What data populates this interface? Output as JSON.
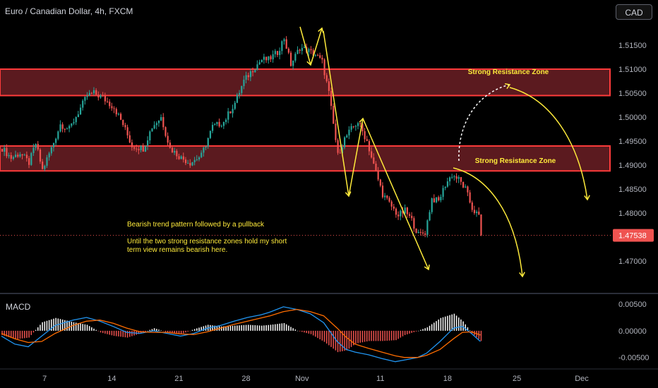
{
  "header": {
    "title": "Euro / Canadian Dollar, 4h, FXCM",
    "currency_button": "CAD"
  },
  "indicator": {
    "label": "MACD"
  },
  "colors": {
    "up": "#26a69a",
    "down": "#ef5350",
    "zone_fill": "#5b1a1f",
    "zone_border": "#ff3b3b",
    "annotation": "#ffeb3b",
    "macd_line": "#2196f3",
    "signal_line": "#ff6d00",
    "hist_pos": "#ffffff",
    "hist_neg": "#ef5350",
    "axis_text": "#b2b5be"
  },
  "chart_data": [
    {
      "type": "candlestick",
      "title": "Euro / Canadian Dollar, 4h, FXCM",
      "y_axis_labels": [
        "1.51500",
        "1.51000",
        "1.50500",
        "1.50000",
        "1.49500",
        "1.49000",
        "1.48500",
        "1.48000",
        "1.47000"
      ],
      "x_tick_labels": [
        "7",
        "14",
        "21",
        "28",
        "Nov",
        "11",
        "18",
        "25",
        "Dec"
      ],
      "ylim": [
        1.4665,
        1.52
      ],
      "last_price": "1.47538",
      "series": [
        {
          "close_path": [
            [
              0,
              1.4935
            ],
            [
              4,
              1.4915
            ],
            [
              8,
              1.4925
            ],
            [
              12,
              1.4905
            ],
            [
              15,
              1.4945
            ],
            [
              18,
              1.489
            ],
            [
              22,
              1.4935
            ],
            [
              26,
              1.4985
            ],
            [
              30,
              1.4975
            ],
            [
              34,
              1.501
            ],
            [
              38,
              1.5045
            ],
            [
              41,
              1.505
            ],
            [
              45,
              1.504
            ],
            [
              50,
              1.502
            ],
            [
              54,
              1.4985
            ],
            [
              58,
              1.494
            ],
            [
              63,
              1.4935
            ],
            [
              67,
              1.498
            ],
            [
              71,
              1.5
            ],
            [
              75,
              1.4935
            ],
            [
              80,
              1.4915
            ],
            [
              84,
              1.4905
            ],
            [
              89,
              1.492
            ],
            [
              94,
              1.498
            ],
            [
              99,
              1.499
            ],
            [
              104,
              1.503
            ],
            [
              108,
              1.5075
            ],
            [
              112,
              1.51
            ],
            [
              116,
              1.512
            ],
            [
              119,
              1.512
            ],
            [
              123,
              1.5135
            ],
            [
              126,
              1.5165
            ],
            [
              129,
              1.511
            ],
            [
              133,
              1.5145
            ],
            [
              136,
              1.514
            ],
            [
              140,
              1.513
            ],
            [
              143,
              1.5115
            ],
            [
              146,
              1.505
            ],
            [
              150,
              1.492
            ],
            [
              153,
              1.4955
            ],
            [
              156,
              1.4975
            ],
            [
              159,
              1.499
            ],
            [
              163,
              1.495
            ],
            [
              166,
              1.49
            ],
            [
              170,
              1.484
            ],
            [
              173,
              1.482
            ],
            [
              177,
              1.4795
            ],
            [
              180,
              1.4805
            ],
            [
              183,
              1.4785
            ],
            [
              186,
              1.4755
            ],
            [
              189,
              1.476
            ],
            [
              192,
              1.483
            ],
            [
              195,
              1.4825
            ],
            [
              198,
              1.486
            ],
            [
              201,
              1.488
            ],
            [
              204,
              1.487
            ],
            [
              207,
              1.485
            ],
            [
              210,
              1.481
            ],
            [
              213,
              1.4793
            ],
            [
              214,
              1.47538
            ]
          ]
        }
      ],
      "zones": [
        {
          "label": "Strong Resistance Zone",
          "from": 1.5045,
          "to": 1.51
        },
        {
          "label": "Strong Resistance Zone",
          "from": 1.4888,
          "to": 1.494
        }
      ],
      "annotations": [
        "Bearish trend pattern followed by a pullback",
        "Until the two strong resistance zones hold my short",
        "term view remains bearish here."
      ],
      "grid": false
    },
    {
      "type": "line",
      "title": "MACD",
      "y_axis_labels": [
        "0.00500",
        "0.00000",
        "-0.00500"
      ],
      "ylim": [
        -0.0065,
        0.0062
      ],
      "series": [
        {
          "role": "macd",
          "points": [
            [
              0,
              -0.001
            ],
            [
              6,
              -0.0025
            ],
            [
              12,
              -0.003
            ],
            [
              18,
              -0.001
            ],
            [
              24,
              0.001
            ],
            [
              32,
              0.002
            ],
            [
              38,
              0.0025
            ],
            [
              44,
              0.0018
            ],
            [
              50,
              0.0008
            ],
            [
              56,
              -0.0003
            ],
            [
              62,
              -0.0005
            ],
            [
              68,
              0.0
            ],
            [
              74,
              -0.0005
            ],
            [
              80,
              -0.001
            ],
            [
              86,
              -0.0005
            ],
            [
              92,
              0.0005
            ],
            [
              98,
              0.001
            ],
            [
              104,
              0.0018
            ],
            [
              110,
              0.0025
            ],
            [
              116,
              0.003
            ],
            [
              120,
              0.0035
            ],
            [
              126,
              0.0045
            ],
            [
              132,
              0.004
            ],
            [
              138,
              0.0032
            ],
            [
              144,
              0.0015
            ],
            [
              150,
              -0.002
            ],
            [
              154,
              -0.0035
            ],
            [
              158,
              -0.004
            ],
            [
              164,
              -0.0045
            ],
            [
              170,
              -0.0052
            ],
            [
              176,
              -0.0058
            ],
            [
              180,
              -0.0055
            ],
            [
              186,
              -0.005
            ],
            [
              190,
              -0.0042
            ],
            [
              196,
              -0.002
            ],
            [
              202,
              0.0005
            ],
            [
              206,
              0.0008
            ],
            [
              210,
              -0.0005
            ],
            [
              214,
              -0.002
            ]
          ]
        },
        {
          "role": "signal",
          "points": [
            [
              0,
              -0.0005
            ],
            [
              6,
              -0.0015
            ],
            [
              12,
              -0.0022
            ],
            [
              18,
              -0.002
            ],
            [
              24,
              -0.0005
            ],
            [
              32,
              0.001
            ],
            [
              38,
              0.0018
            ],
            [
              44,
              0.002
            ],
            [
              50,
              0.0014
            ],
            [
              56,
              0.0005
            ],
            [
              62,
              -0.0002
            ],
            [
              68,
              -0.0003
            ],
            [
              74,
              -0.0003
            ],
            [
              80,
              -0.0006
            ],
            [
              86,
              -0.0007
            ],
            [
              92,
              -0.0002
            ],
            [
              98,
              0.0005
            ],
            [
              104,
              0.0012
            ],
            [
              110,
              0.0018
            ],
            [
              116,
              0.0024
            ],
            [
              120,
              0.0028
            ],
            [
              126,
              0.0036
            ],
            [
              132,
              0.004
            ],
            [
              138,
              0.0036
            ],
            [
              144,
              0.0028
            ],
            [
              150,
              0.0005
            ],
            [
              154,
              -0.0012
            ],
            [
              158,
              -0.0025
            ],
            [
              164,
              -0.0033
            ],
            [
              170,
              -0.004
            ],
            [
              176,
              -0.0047
            ],
            [
              180,
              -0.005
            ],
            [
              186,
              -0.005
            ],
            [
              190,
              -0.0046
            ],
            [
              196,
              -0.0035
            ],
            [
              202,
              -0.0015
            ],
            [
              206,
              -0.0003
            ],
            [
              210,
              -0.0002
            ],
            [
              214,
              -0.0008
            ]
          ]
        }
      ]
    }
  ]
}
